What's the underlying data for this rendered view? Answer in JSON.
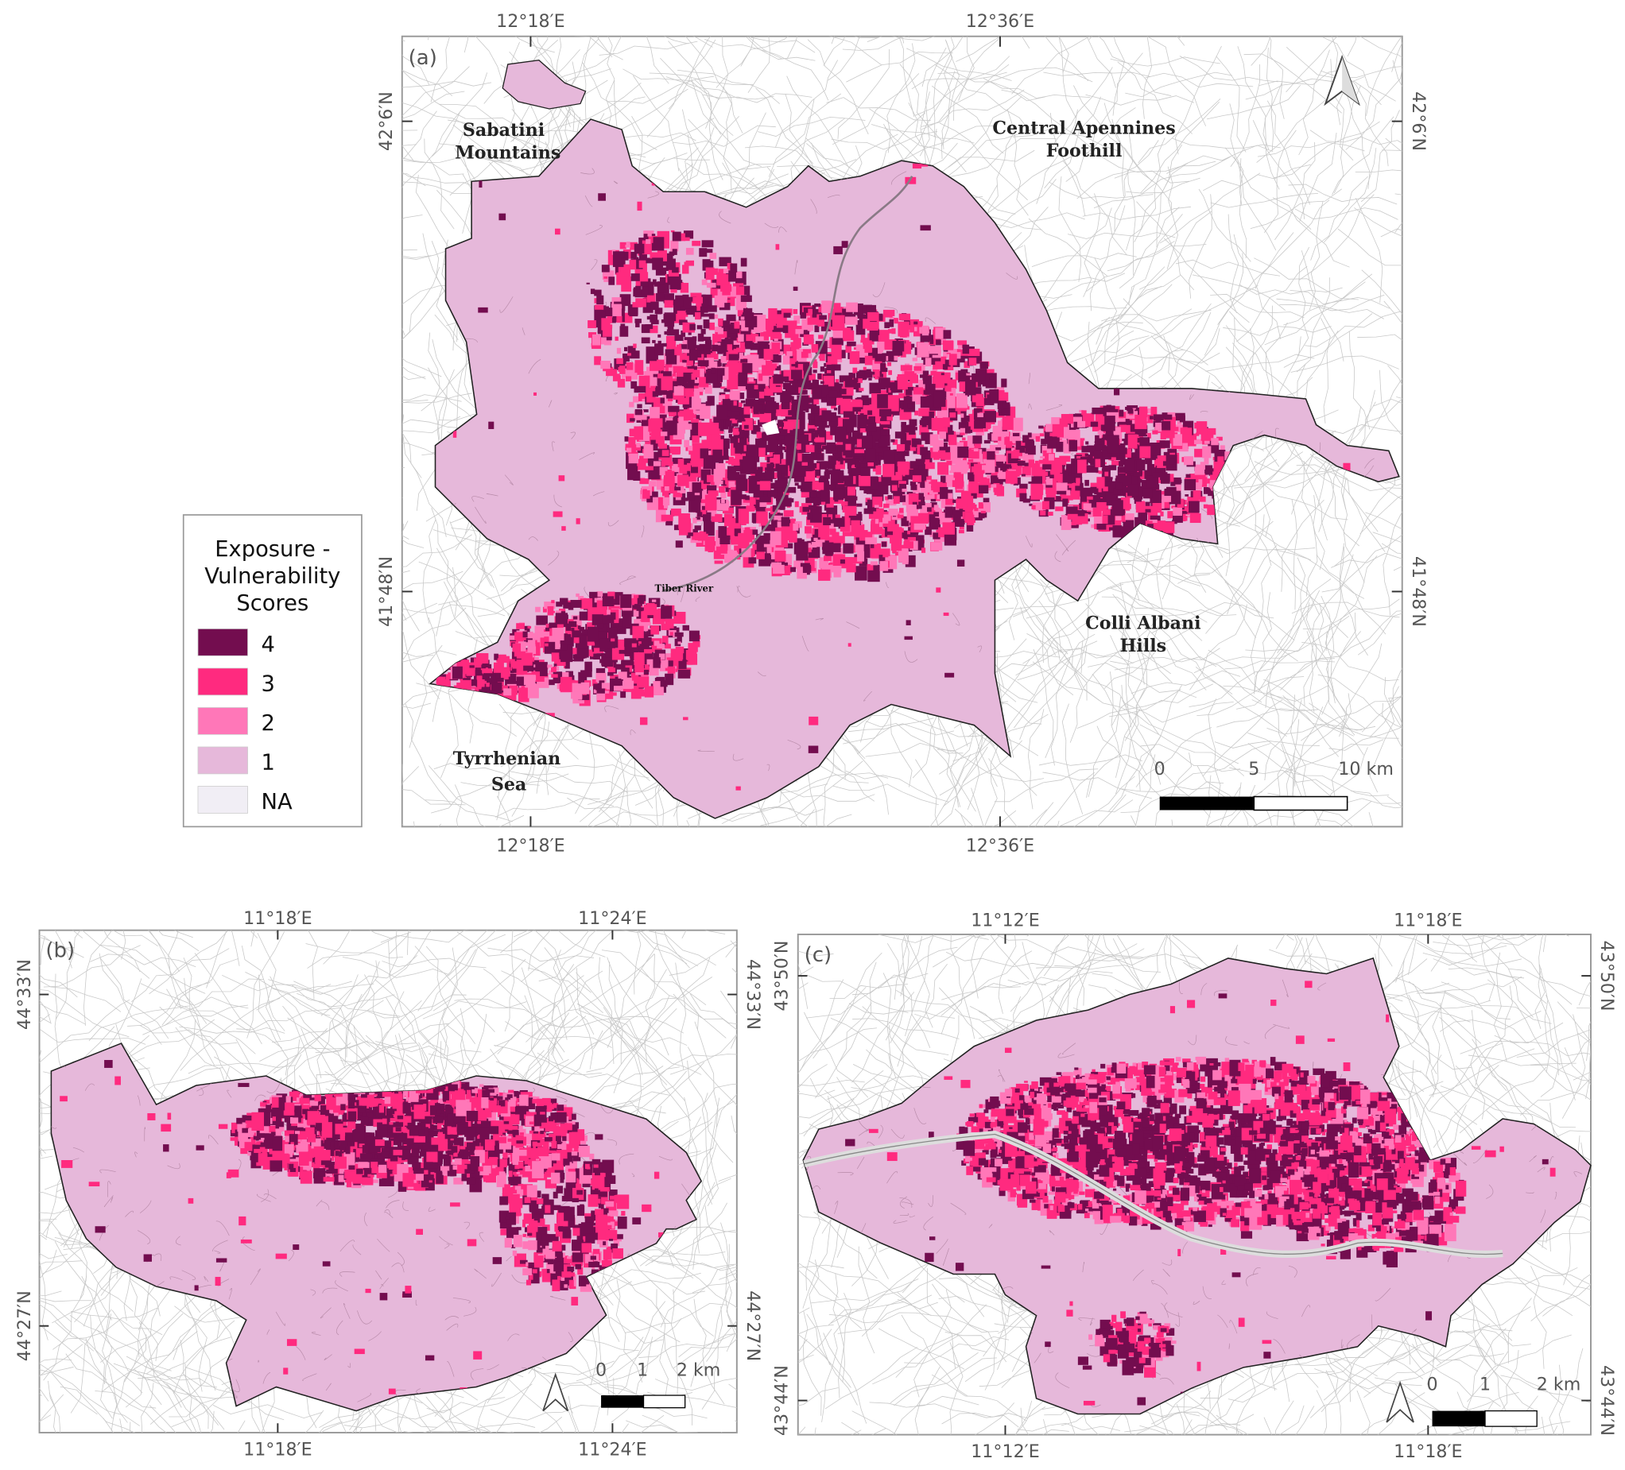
{
  "legend": {
    "title_lines": [
      "Exposure -",
      "Vulnerability",
      "Scores"
    ],
    "items": [
      {
        "label": "4",
        "color": "#730d4f"
      },
      {
        "label": "3",
        "color": "#ff2a7f"
      },
      {
        "label": "2",
        "color": "#ff77b8"
      },
      {
        "label": "1",
        "color": "#e6b8da"
      },
      {
        "label": "NA",
        "color": "#f1eef5"
      }
    ]
  },
  "panels": {
    "a": {
      "label": "(a)",
      "lon_ticks": [
        "12°18′E",
        "12°36′E"
      ],
      "lat_ticks": [
        "42°6′N",
        "41°48′N"
      ],
      "places": {
        "sabatini": [
          "Sabatini",
          "Mountains"
        ],
        "apennines": [
          "Central Apennines",
          "Foothill"
        ],
        "albani": [
          "Colli Albani",
          "Hills"
        ],
        "sea": [
          "Tyrrhenian",
          "Sea"
        ],
        "river": "Tiber River"
      },
      "scalebar": [
        "0",
        "5",
        "10 km"
      ],
      "north_arrow": "north-arrow-icon"
    },
    "b": {
      "label": "(b)",
      "lon_ticks": [
        "11°18′E",
        "11°24′E"
      ],
      "lat_ticks": [
        "44°33′N",
        "44°27′N"
      ],
      "scalebar": [
        "0",
        "1",
        "2 km"
      ],
      "north_arrow": "north-arrow-icon"
    },
    "c": {
      "label": "(c)",
      "lon_ticks": [
        "11°12′E",
        "11°18′E"
      ],
      "lat_ticks": [
        "43°50′N",
        "43°44′N"
      ],
      "scalebar": [
        "0",
        "1",
        "2 km"
      ],
      "north_arrow": "north-arrow-icon"
    }
  }
}
